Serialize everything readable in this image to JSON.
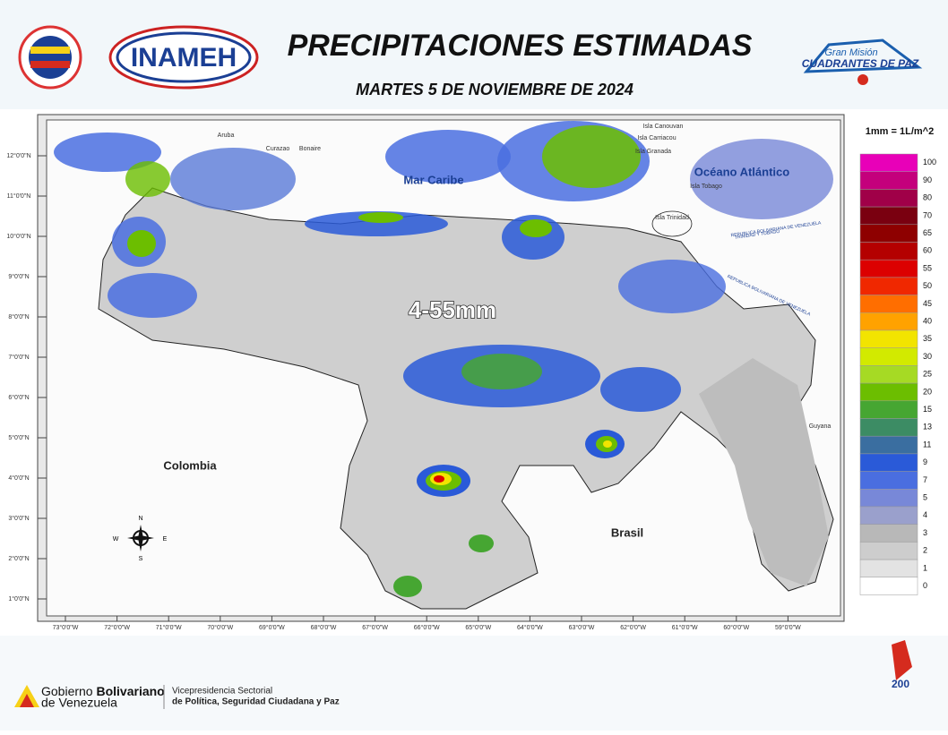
{
  "header": {
    "title": "PRECIPITACIONES ESTIMADAS",
    "date": "MARTES 5 DE NOVIEMBRE DE 2024",
    "left_logo": "INAMEH",
    "right_logo_top": "Gran Misión",
    "right_logo_bottom": "CUADRANTES DE PAZ"
  },
  "map": {
    "lat_labels": [
      "12°0'0\"N",
      "11°0'0\"N",
      "10°0'0\"N",
      "9°0'0\"N",
      "8°0'0\"N",
      "7°0'0\"N",
      "6°0'0\"N",
      "5°0'0\"N",
      "4°0'0\"N",
      "3°0'0\"N",
      "2°0'0\"N",
      "1°0'0\"N"
    ],
    "lon_labels": [
      "73°0'0\"W",
      "72°0'0\"W",
      "71°0'0\"W",
      "70°0'0\"W",
      "69°0'0\"W",
      "68°0'0\"W",
      "67°0'0\"W",
      "66°0'0\"W",
      "65°0'0\"W",
      "64°0'0\"W",
      "63°0'0\"W",
      "62°0'0\"W",
      "61°0'0\"W",
      "60°0'0\"W",
      "59°0'0\"W"
    ],
    "places": {
      "sea": "Mar Caribe",
      "ocean": "Océano Atlántico",
      "colombia": "Colombia",
      "brasil": "Brasil",
      "guyana": "Guyana",
      "aruba": "Aruba",
      "curazao": "Curazao",
      "bonaire": "Bonaire",
      "canouvan": "Isla Canouvan",
      "carriacou": "Isla Carriacou",
      "granada": "Isla Granada",
      "tobago": "Isla Tobago",
      "trinidad": "Isla Trinidad",
      "border_tt": "TRINIDAD Y TOBAGO",
      "border_ve1": "REPUBLICA BOLIVARIANA DE VENEZUELA",
      "border_ve2": "REPUBLICA BOLIVARIANA DE VENEZUELA"
    },
    "range_label": "4-55mm",
    "compass": {
      "n": "N",
      "s": "S",
      "e": "E",
      "w": "W"
    }
  },
  "legend": {
    "title": "1mm = 1L/m^2",
    "items": [
      {
        "label": 100,
        "color": "#e800b8"
      },
      {
        "label": 90,
        "color": "#c4007c"
      },
      {
        "label": 80,
        "color": "#a00048"
      },
      {
        "label": 70,
        "color": "#7a0010"
      },
      {
        "label": 65,
        "color": "#8e0000"
      },
      {
        "label": 60,
        "color": "#b40000"
      },
      {
        "label": 55,
        "color": "#dc0000"
      },
      {
        "label": 50,
        "color": "#f02800"
      },
      {
        "label": 45,
        "color": "#ff6e00"
      },
      {
        "label": 40,
        "color": "#ffa200"
      },
      {
        "label": 35,
        "color": "#f2e400"
      },
      {
        "label": 30,
        "color": "#d2ea00"
      },
      {
        "label": 25,
        "color": "#a6da24"
      },
      {
        "label": 20,
        "color": "#6cbe00"
      },
      {
        "label": 15,
        "color": "#46a632"
      },
      {
        "label": 13,
        "color": "#3c8c64"
      },
      {
        "label": 11,
        "color": "#3a6ea0"
      },
      {
        "label": 9,
        "color": "#2a5ad8"
      },
      {
        "label": 7,
        "color": "#4a6ee0"
      },
      {
        "label": 5,
        "color": "#7888d8"
      },
      {
        "label": 4,
        "color": "#9aa0cc"
      },
      {
        "label": 3,
        "color": "#b8b8b8"
      },
      {
        "label": 2,
        "color": "#cdcdcd"
      },
      {
        "label": 1,
        "color": "#e3e3e3"
      },
      {
        "label": 0,
        "color": "#ffffff"
      }
    ]
  },
  "footer": {
    "gov_line1_a": "Gobierno ",
    "gov_line1_b": "Bolivariano",
    "gov_line2": "de Venezuela",
    "vice_line1": "Vicepresidencia Sectorial",
    "vice_line2": "de Política, Seguridad Ciudadana y Paz"
  }
}
